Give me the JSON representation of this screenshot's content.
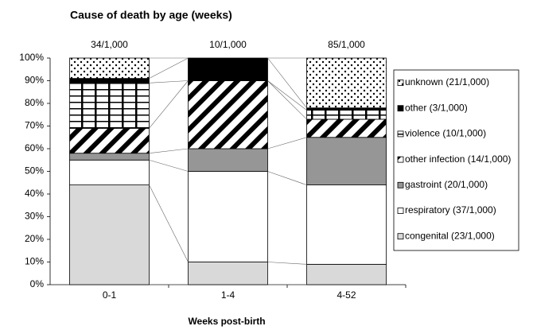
{
  "chart_data": {
    "type": "stacked_bar_100",
    "title": "Cause of death by age (weeks)",
    "x_label": "Weeks post-birth",
    "categories": [
      "0-1",
      "1-4",
      "4-52"
    ],
    "annotations": [
      "34/1,000",
      "10/1,000",
      "85/1,000"
    ],
    "ylim": [
      0,
      100
    ],
    "yticks": [
      {
        "value": 0,
        "label": "0%"
      },
      {
        "value": 10,
        "label": "10%"
      },
      {
        "value": 20,
        "label": "20%"
      },
      {
        "value": 30,
        "label": "30%"
      },
      {
        "value": 40,
        "label": "40%"
      },
      {
        "value": 50,
        "label": "50%"
      },
      {
        "value": 60,
        "label": "60%"
      },
      {
        "value": 70,
        "label": "70%"
      },
      {
        "value": 80,
        "label": "80%"
      },
      {
        "value": 90,
        "label": "90%"
      },
      {
        "value": 100,
        "label": "100%"
      }
    ],
    "legend": "right",
    "series": [
      {
        "name": "congenital (23/1,000)",
        "color": "#d9d9d9",
        "pattern": "solid",
        "values": [
          44,
          10,
          9
        ]
      },
      {
        "name": "respiratory (37/1,000)",
        "color": "#ffffff",
        "pattern": "solid",
        "values": [
          11,
          40,
          35
        ]
      },
      {
        "name": "gastroint (20/1,000)",
        "color": "#969696",
        "pattern": "solid",
        "values": [
          3,
          10,
          21
        ]
      },
      {
        "name": "other infection (14/1,000)",
        "color": "#000000",
        "pattern": "diagonal",
        "values": [
          11,
          30,
          8
        ]
      },
      {
        "name": "violence (10/1,000)",
        "color": "#000000",
        "pattern": "grid",
        "values": [
          20,
          0,
          4
        ]
      },
      {
        "name": "other (3/1,000)",
        "color": "#000000",
        "pattern": "solid",
        "values": [
          2,
          10,
          1
        ]
      },
      {
        "name": "unknown (21/1,000)",
        "color": "#000000",
        "pattern": "dots",
        "values": [
          9,
          0,
          22
        ]
      }
    ]
  }
}
